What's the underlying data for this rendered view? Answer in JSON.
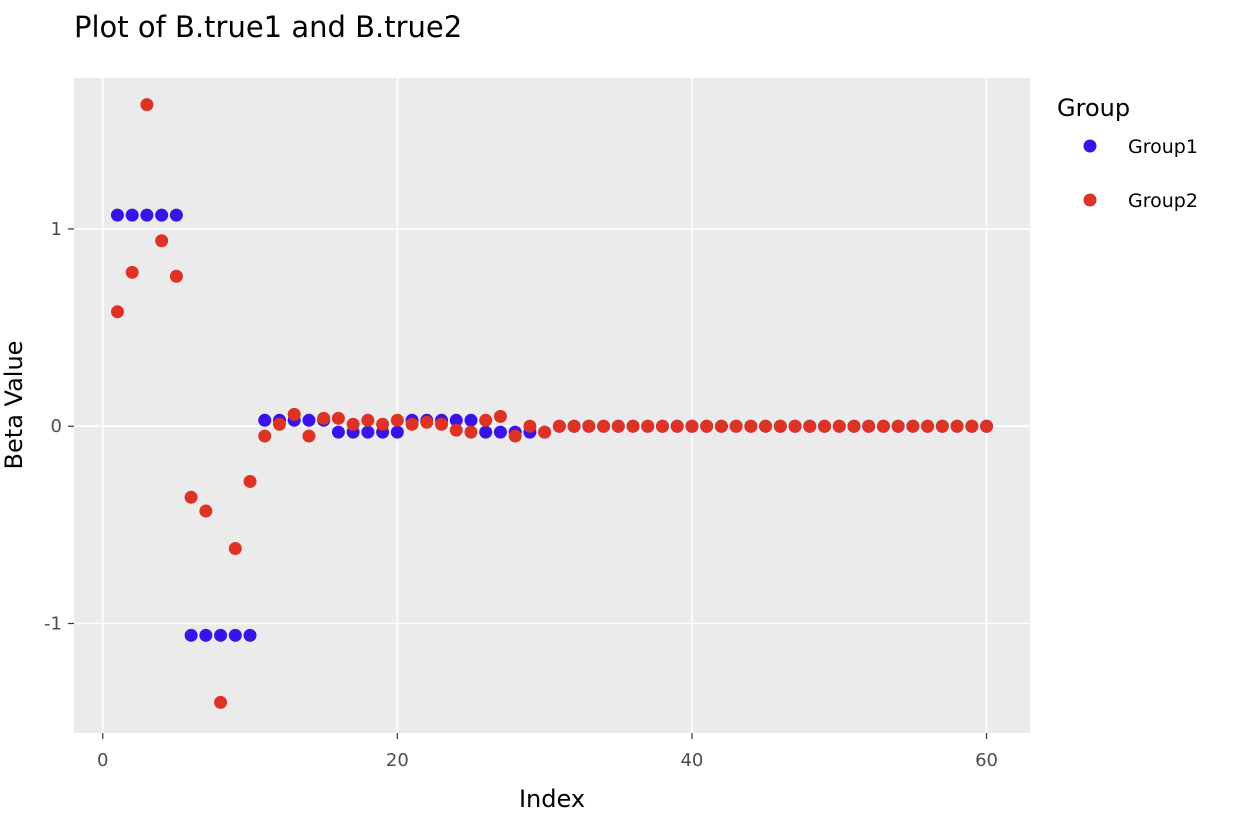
{
  "chart_data": {
    "type": "scatter",
    "title": "Plot of B.true1 and B.true2",
    "xlabel": "Index",
    "ylabel": "Beta Value",
    "xlim": [
      -1.95,
      62.95
    ],
    "ylim": [
      -1.555,
      1.765
    ],
    "xticks": [
      0,
      20,
      40,
      60
    ],
    "yticks": [
      -1,
      0,
      1
    ],
    "x_tick_labels": [
      "0",
      "20",
      "40",
      "60"
    ],
    "y_tick_labels": [
      "-1",
      "0",
      "1"
    ],
    "grid": true,
    "legend": {
      "title": "Group",
      "position": "right"
    },
    "series": [
      {
        "name": "Group1",
        "color": "#3a12ea",
        "x": [
          1,
          2,
          3,
          4,
          5,
          6,
          7,
          8,
          9,
          10,
          11,
          12,
          13,
          14,
          15,
          16,
          17,
          18,
          19,
          20,
          21,
          22,
          23,
          24,
          25,
          26,
          27,
          28,
          29,
          30,
          31,
          32,
          33,
          34,
          35,
          36,
          37,
          38,
          39,
          40,
          41,
          42,
          43,
          44,
          45,
          46,
          47,
          48,
          49,
          50,
          51,
          52,
          53,
          54,
          55,
          56,
          57,
          58,
          59,
          60
        ],
        "y": [
          1.07,
          1.07,
          1.07,
          1.07,
          1.07,
          -1.06,
          -1.06,
          -1.06,
          -1.06,
          -1.06,
          0.03,
          0.03,
          0.03,
          0.03,
          0.03,
          -0.03,
          -0.03,
          -0.03,
          -0.03,
          -0.03,
          0.03,
          0.03,
          0.03,
          0.03,
          0.03,
          -0.03,
          -0.03,
          -0.03,
          -0.03,
          -0.03,
          0,
          0,
          0,
          0,
          0,
          0,
          0,
          0,
          0,
          0,
          0,
          0,
          0,
          0,
          0,
          0,
          0,
          0,
          0,
          0,
          0,
          0,
          0,
          0,
          0,
          0,
          0,
          0,
          0,
          0
        ]
      },
      {
        "name": "Group2",
        "color": "#dd3224",
        "x": [
          1,
          2,
          3,
          4,
          5,
          6,
          7,
          8,
          9,
          10,
          11,
          12,
          13,
          14,
          15,
          16,
          17,
          18,
          19,
          20,
          21,
          22,
          23,
          24,
          25,
          26,
          27,
          28,
          29,
          30,
          31,
          32,
          33,
          34,
          35,
          36,
          37,
          38,
          39,
          40,
          41,
          42,
          43,
          44,
          45,
          46,
          47,
          48,
          49,
          50,
          51,
          52,
          53,
          54,
          55,
          56,
          57,
          58,
          59,
          60
        ],
        "y": [
          0.58,
          0.78,
          1.63,
          0.94,
          0.76,
          -0.36,
          -0.43,
          -1.4,
          -0.62,
          -0.28,
          -0.05,
          0.01,
          0.06,
          -0.05,
          0.04,
          0.04,
          0.01,
          0.03,
          0.01,
          0.03,
          0.01,
          0.02,
          0.01,
          -0.02,
          -0.03,
          0.03,
          0.05,
          -0.05,
          0.0,
          -0.03,
          0,
          0,
          0,
          0,
          0,
          0,
          0,
          0,
          0,
          0,
          0,
          0,
          0,
          0,
          0,
          0,
          0,
          0,
          0,
          0,
          0,
          0,
          0,
          0,
          0,
          0,
          0,
          0,
          0,
          0
        ]
      }
    ]
  }
}
